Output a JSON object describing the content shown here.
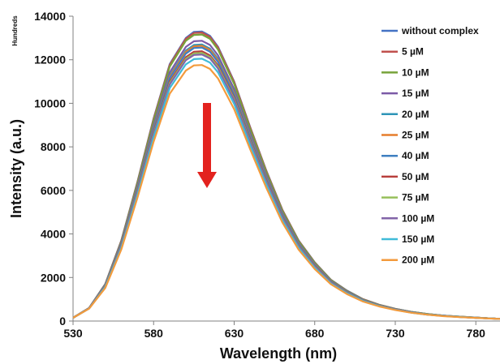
{
  "chart_data": {
    "type": "line",
    "title": "",
    "xlabel": "Wavelength (nm)",
    "ylabel": "Intensity (a.u.)",
    "y_units_note": "Hundreds",
    "xlim": [
      530,
      795
    ],
    "ylim": [
      0,
      14000
    ],
    "x_ticks": [
      "530",
      "580",
      "630",
      "680",
      "730",
      "780"
    ],
    "y_ticks": [
      "0",
      "2000",
      "4000",
      "6000",
      "8000",
      "10000",
      "12000",
      "14000"
    ],
    "grid": false,
    "legend_position": "right",
    "annotation": "red downward arrow indicating decreasing intensity",
    "annotation_color": "#e3221e",
    "x": [
      530,
      540,
      550,
      560,
      570,
      580,
      590,
      600,
      605,
      610,
      615,
      620,
      630,
      640,
      650,
      660,
      670,
      680,
      690,
      700,
      710,
      720,
      730,
      740,
      750,
      760,
      770,
      780,
      790,
      795
    ],
    "series": [
      {
        "name": "without complex",
        "color": "#4472c4",
        "values": [
          150,
          600,
          1700,
          3700,
          6400,
          9300,
          11800,
          13000,
          13280,
          13300,
          13100,
          12600,
          11000,
          8900,
          6900,
          5100,
          3700,
          2700,
          1900,
          1400,
          1000,
          750,
          560,
          420,
          320,
          250,
          200,
          160,
          120,
          100
        ]
      },
      {
        "name": "5 µM",
        "color": "#c0504d",
        "values": [
          150,
          600,
          1690,
          3690,
          6380,
          9270,
          11760,
          12960,
          13230,
          13250,
          13050,
          12560,
          10970,
          8880,
          6880,
          5090,
          3690,
          2690,
          1890,
          1390,
          1000,
          750,
          560,
          420,
          320,
          250,
          200,
          160,
          120,
          100
        ]
      },
      {
        "name": "10 µM",
        "color": "#77a33a",
        "values": [
          150,
          600,
          1680,
          3660,
          6330,
          9200,
          11680,
          12870,
          13140,
          13160,
          12960,
          12470,
          10890,
          8810,
          6830,
          5050,
          3660,
          2670,
          1880,
          1380,
          990,
          740,
          560,
          420,
          320,
          250,
          200,
          160,
          120,
          100
        ]
      },
      {
        "name": "15 µM",
        "color": "#7b5aa6",
        "values": [
          150,
          595,
          1660,
          3600,
          6200,
          9000,
          11420,
          12590,
          12850,
          12870,
          12680,
          12200,
          10650,
          8620,
          6680,
          4940,
          3580,
          2610,
          1840,
          1360,
          970,
          730,
          550,
          410,
          310,
          245,
          195,
          155,
          120,
          100
        ]
      },
      {
        "name": "20 µM",
        "color": "#2e95b7",
        "values": [
          150,
          590,
          1640,
          3550,
          6120,
          8880,
          11270,
          12420,
          12680,
          12700,
          12510,
          12040,
          10510,
          8510,
          6590,
          4880,
          3540,
          2580,
          1820,
          1340,
          960,
          720,
          540,
          405,
          310,
          245,
          195,
          155,
          120,
          100
        ]
      },
      {
        "name": "25 µM",
        "color": "#e67d2c",
        "values": [
          150,
          590,
          1630,
          3530,
          6090,
          8840,
          11220,
          12360,
          12620,
          12640,
          12450,
          11980,
          10460,
          8470,
          6560,
          4860,
          3520,
          2570,
          1810,
          1330,
          955,
          715,
          540,
          400,
          305,
          240,
          195,
          155,
          120,
          100
        ]
      },
      {
        "name": "40 µM",
        "color": "#3f7fc1",
        "values": [
          150,
          585,
          1620,
          3510,
          6050,
          8780,
          11150,
          12280,
          12540,
          12560,
          12370,
          11900,
          10390,
          8410,
          6520,
          4830,
          3500,
          2550,
          1800,
          1320,
          950,
          710,
          535,
          400,
          305,
          240,
          190,
          150,
          115,
          100
        ]
      },
      {
        "name": "50 µM",
        "color": "#b83f3c",
        "values": [
          150,
          585,
          1600,
          3460,
          5970,
          8660,
          11000,
          12120,
          12370,
          12390,
          12200,
          11740,
          10250,
          8300,
          6430,
          4760,
          3450,
          2520,
          1780,
          1310,
          940,
          705,
          530,
          395,
          300,
          235,
          190,
          150,
          115,
          100
        ]
      },
      {
        "name": "75 µM",
        "color": "#97c05b",
        "values": [
          150,
          580,
          1590,
          3440,
          5930,
          8610,
          10930,
          12040,
          12290,
          12310,
          12130,
          11670,
          10190,
          8250,
          6390,
          4730,
          3430,
          2500,
          1770,
          1300,
          935,
          700,
          525,
          395,
          300,
          235,
          190,
          150,
          115,
          100
        ]
      },
      {
        "name": "100 µM",
        "color": "#8264a8",
        "values": [
          150,
          580,
          1580,
          3420,
          5900,
          8560,
          10870,
          11980,
          12220,
          12240,
          12060,
          11600,
          10130,
          8200,
          6360,
          4710,
          3410,
          2490,
          1760,
          1290,
          930,
          695,
          525,
          390,
          295,
          235,
          185,
          150,
          115,
          100
        ]
      },
      {
        "name": "150 µM",
        "color": "#40bbd8",
        "values": [
          150,
          575,
          1560,
          3370,
          5810,
          8430,
          10700,
          11790,
          12030,
          12050,
          11870,
          11420,
          9970,
          8070,
          6260,
          4630,
          3360,
          2450,
          1730,
          1270,
          915,
          685,
          515,
          385,
          295,
          230,
          185,
          150,
          115,
          100
        ]
      },
      {
        "name": "200 µM",
        "color": "#f39a3c",
        "values": [
          150,
          570,
          1520,
          3290,
          5670,
          8230,
          10440,
          11500,
          11740,
          11760,
          11580,
          11140,
          9730,
          7880,
          6110,
          4520,
          3280,
          2390,
          1690,
          1240,
          895,
          670,
          505,
          380,
          290,
          225,
          180,
          145,
          110,
          95
        ]
      }
    ]
  }
}
